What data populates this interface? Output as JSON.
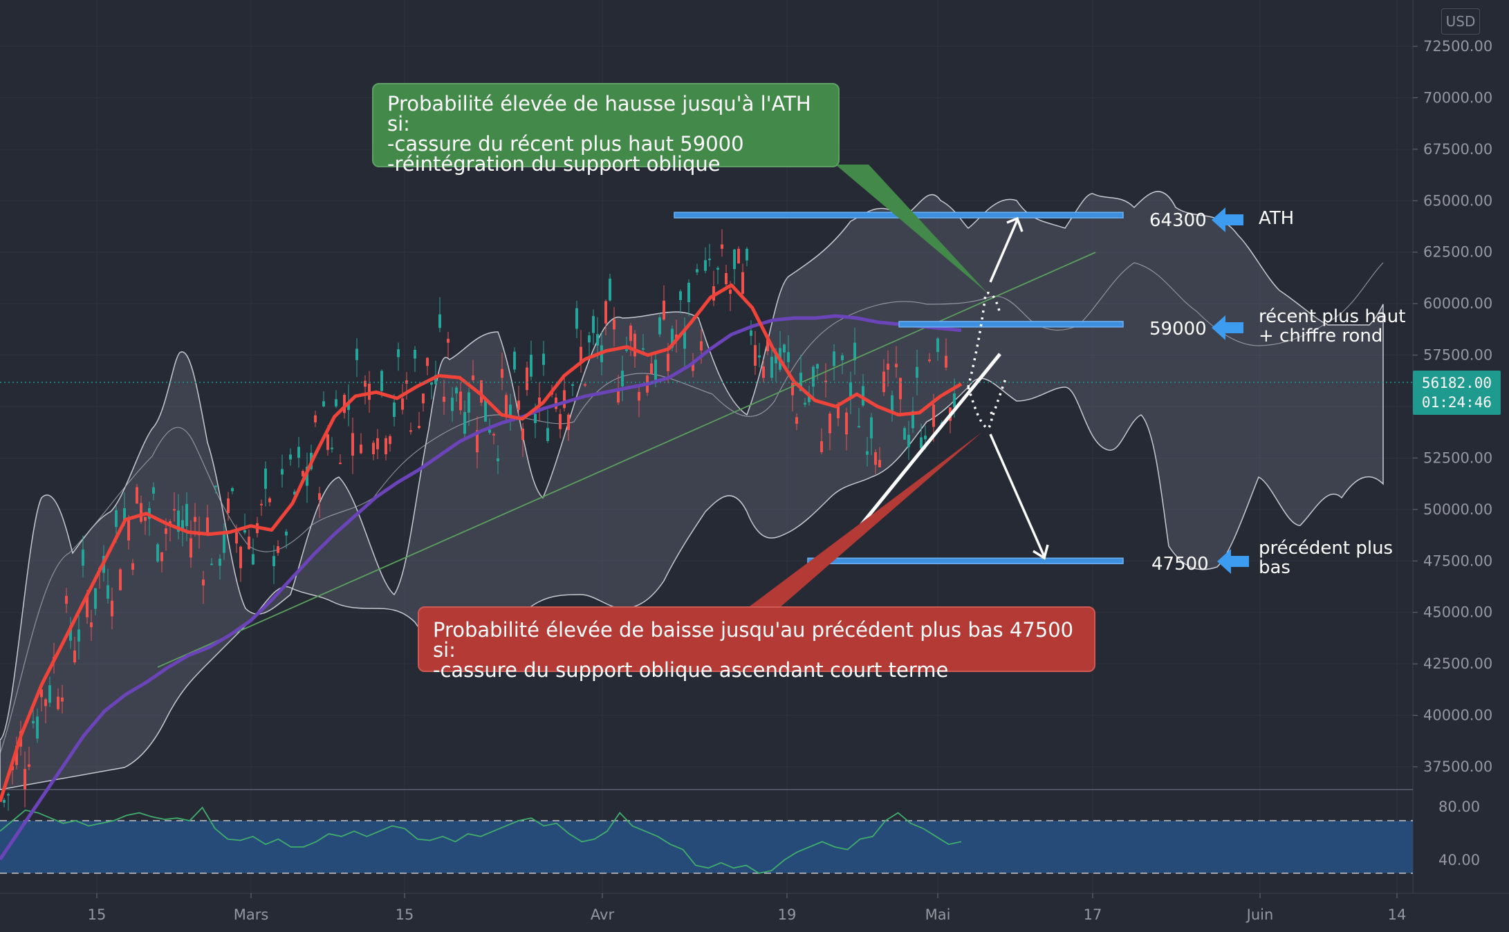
{
  "currency": "USD",
  "last_price": {
    "value": "56182.00",
    "countdown": "01:24:46",
    "color": "#1f9a8f"
  },
  "callouts": {
    "bullish": {
      "text": "Probabilité élevée de hausse jusqu'à l'ATH si:\n-cassure du récent plus haut 59000\n-réintégration du support oblique",
      "color": "#43894a"
    },
    "bearish": {
      "text": "Probabilité élevée de baisse jusqu'au précédent plus bas 47500 si:\n-cassure du support oblique ascendant court terme",
      "color": "#b33a35"
    }
  },
  "levels": [
    {
      "value": "64300",
      "desc": [
        "ATH"
      ]
    },
    {
      "value": "59000",
      "desc": [
        "récent plus haut",
        "+ chiffre rond"
      ]
    },
    {
      "value": "47500",
      "desc": [
        "précédent plus",
        "bas"
      ]
    }
  ],
  "chart_data": {
    "type": "line",
    "price_axis": {
      "ticks": [
        "72500.00",
        "70000.00",
        "67500.00",
        "65000.00",
        "62500.00",
        "60000.00",
        "57500.00",
        "55000.00",
        "52500.00",
        "50000.00",
        "47500.00",
        "45000.00",
        "42500.00",
        "40000.00",
        "37500.00"
      ],
      "ylim": [
        35500,
        74000
      ]
    },
    "rsi_axis": {
      "ticks": [
        "80.00",
        "40.00"
      ],
      "band": [
        30,
        70
      ]
    },
    "time_axis": {
      "ticks": [
        "15",
        "Mars",
        "15",
        "Avr",
        "19",
        "Mai",
        "17",
        "Juin",
        "14"
      ]
    },
    "series": [
      {
        "color": "#f0443a",
        "values": [
          35800,
          39000,
          41500,
          43500,
          45500,
          47500,
          49500,
          49800,
          49300,
          48900,
          48800,
          48900,
          49200,
          49000,
          50300,
          52500,
          54500,
          55500,
          55700,
          55400,
          56000,
          56500,
          56400,
          55600,
          54600,
          54400,
          55200,
          56500,
          57300,
          57700,
          57900,
          57500,
          57800,
          59000,
          60300,
          60900,
          59800,
          57800,
          56200,
          55300,
          55000,
          55600,
          55000,
          54600,
          54700,
          55500,
          56100
        ]
      },
      {
        "color": "#6a44b8",
        "values": [
          33000,
          34500,
          36000,
          37500,
          39000,
          40200,
          41000,
          41600,
          42300,
          42900,
          43300,
          43900,
          44600,
          45600,
          46700,
          47800,
          48800,
          49700,
          50600,
          51300,
          51900,
          52600,
          53300,
          53800,
          54200,
          54500,
          54900,
          55200,
          55500,
          55700,
          55900,
          56100,
          56400,
          57000,
          57800,
          58500,
          58900,
          59200,
          59300,
          59300,
          59400,
          59300,
          59100,
          59000,
          58900,
          58800,
          58700
        ]
      }
    ],
    "levels_y": [
      64300,
      59000,
      47500
    ],
    "rsi": [
      62,
      70,
      78,
      76,
      72,
      68,
      70,
      66,
      68,
      70,
      74,
      76,
      73,
      71,
      72,
      70,
      80,
      64,
      56,
      55,
      58,
      52,
      56,
      50,
      50,
      54,
      60,
      58,
      62,
      58,
      62,
      66,
      64,
      56,
      55,
      58,
      54,
      60,
      58,
      62,
      66,
      70,
      72,
      66,
      68,
      60,
      54,
      56,
      62,
      76,
      66,
      62,
      58,
      52,
      48,
      36,
      34,
      38,
      34,
      36,
      30,
      32,
      40,
      46,
      50,
      54,
      50,
      48,
      56,
      58,
      70,
      76,
      68,
      64,
      58,
      52,
      54
    ]
  }
}
